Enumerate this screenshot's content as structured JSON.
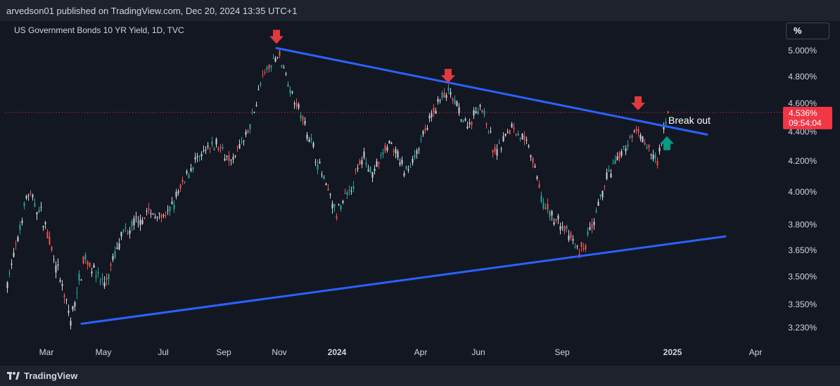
{
  "header": {
    "published_text": "arvedson01 published on TradingView.com, Dec 20, 2024 13:35 UTC+1"
  },
  "symbol_label": "US Government Bonds 10 YR Yield, 1D, TVC",
  "scale_button": "%",
  "footer": {
    "brand": "TradingView"
  },
  "colors": {
    "background": "#131722",
    "trendline": "#2962ff",
    "candle_up": "#26a69a",
    "candle_down": "#ef5350",
    "candle_neutral": "#d1d4dc",
    "marker_down": "#e0393e",
    "marker_up": "#089981",
    "price_badge": "#f23645"
  },
  "chart_data": {
    "type": "candlestick",
    "title": "US Government Bonds 10 YR Yield, 1D, TVC",
    "y_axis": {
      "ticks": [
        "5.000%",
        "4.800%",
        "4.600%",
        "4.400%",
        "4.200%",
        "4.000%",
        "3.800%",
        "3.650%",
        "3.500%",
        "3.350%",
        "3.230%"
      ],
      "scale": "log"
    },
    "x_axis": {
      "ticks": [
        "Mar",
        "May",
        "Jul",
        "Sep",
        "Nov",
        "2024",
        "Apr",
        "Jun",
        "Sep",
        "2025",
        "Apr"
      ]
    },
    "current_price": {
      "value": "4.536%",
      "countdown": "09:54:04"
    },
    "path_points": [
      {
        "t": 0,
        "y": 3.45
      },
      {
        "t": 13,
        "y": 3.63
      },
      {
        "t": 30,
        "y": 4.0
      },
      {
        "t": 52,
        "y": 3.85
      },
      {
        "t": 72,
        "y": 3.55
      },
      {
        "t": 92,
        "y": 3.26
      },
      {
        "t": 112,
        "y": 3.62
      },
      {
        "t": 140,
        "y": 3.45
      },
      {
        "t": 165,
        "y": 3.73
      },
      {
        "t": 200,
        "y": 3.87
      },
      {
        "t": 230,
        "y": 3.85
      },
      {
        "t": 265,
        "y": 4.18
      },
      {
        "t": 300,
        "y": 4.32
      },
      {
        "t": 320,
        "y": 4.2
      },
      {
        "t": 345,
        "y": 4.4
      },
      {
        "t": 365,
        "y": 4.8
      },
      {
        "t": 388,
        "y": 4.98
      },
      {
        "t": 405,
        "y": 4.7
      },
      {
        "t": 430,
        "y": 4.38
      },
      {
        "t": 450,
        "y": 4.1
      },
      {
        "t": 470,
        "y": 3.86
      },
      {
        "t": 490,
        "y": 4.02
      },
      {
        "t": 510,
        "y": 4.25
      },
      {
        "t": 520,
        "y": 4.1
      },
      {
        "t": 545,
        "y": 4.33
      },
      {
        "t": 568,
        "y": 4.12
      },
      {
        "t": 590,
        "y": 4.33
      },
      {
        "t": 615,
        "y": 4.62
      },
      {
        "t": 630,
        "y": 4.68
      },
      {
        "t": 655,
        "y": 4.43
      },
      {
        "t": 675,
        "y": 4.6
      },
      {
        "t": 695,
        "y": 4.25
      },
      {
        "t": 720,
        "y": 4.45
      },
      {
        "t": 745,
        "y": 4.28
      },
      {
        "t": 765,
        "y": 3.9
      },
      {
        "t": 790,
        "y": 3.8
      },
      {
        "t": 815,
        "y": 3.63
      },
      {
        "t": 835,
        "y": 3.78
      },
      {
        "t": 850,
        "y": 4.05
      },
      {
        "t": 870,
        "y": 4.2
      },
      {
        "t": 895,
        "y": 4.42
      },
      {
        "t": 910,
        "y": 4.32
      },
      {
        "t": 925,
        "y": 4.18
      },
      {
        "t": 943,
        "y": 4.55
      }
    ],
    "trendlines": [
      {
        "name": "",
        "from": {
          "t": 385,
          "y": 5.02
        },
        "to": {
          "t": 997,
          "y": 4.38
        }
      },
      {
        "name": "",
        "from": {
          "t": 108,
          "y": 3.25
        },
        "to": {
          "t": 1023,
          "y": 3.73
        }
      }
    ],
    "annotations": [
      {
        "kind": "arrow-down",
        "t": 385,
        "y": 5.02
      },
      {
        "kind": "arrow-down",
        "t": 629,
        "y": 4.72
      },
      {
        "kind": "arrow-down",
        "t": 899,
        "y": 4.52
      },
      {
        "kind": "arrow-up",
        "t": 940,
        "y": 4.34
      },
      {
        "kind": "text",
        "text": "Break out",
        "t": 950,
        "y": 4.5
      }
    ]
  }
}
